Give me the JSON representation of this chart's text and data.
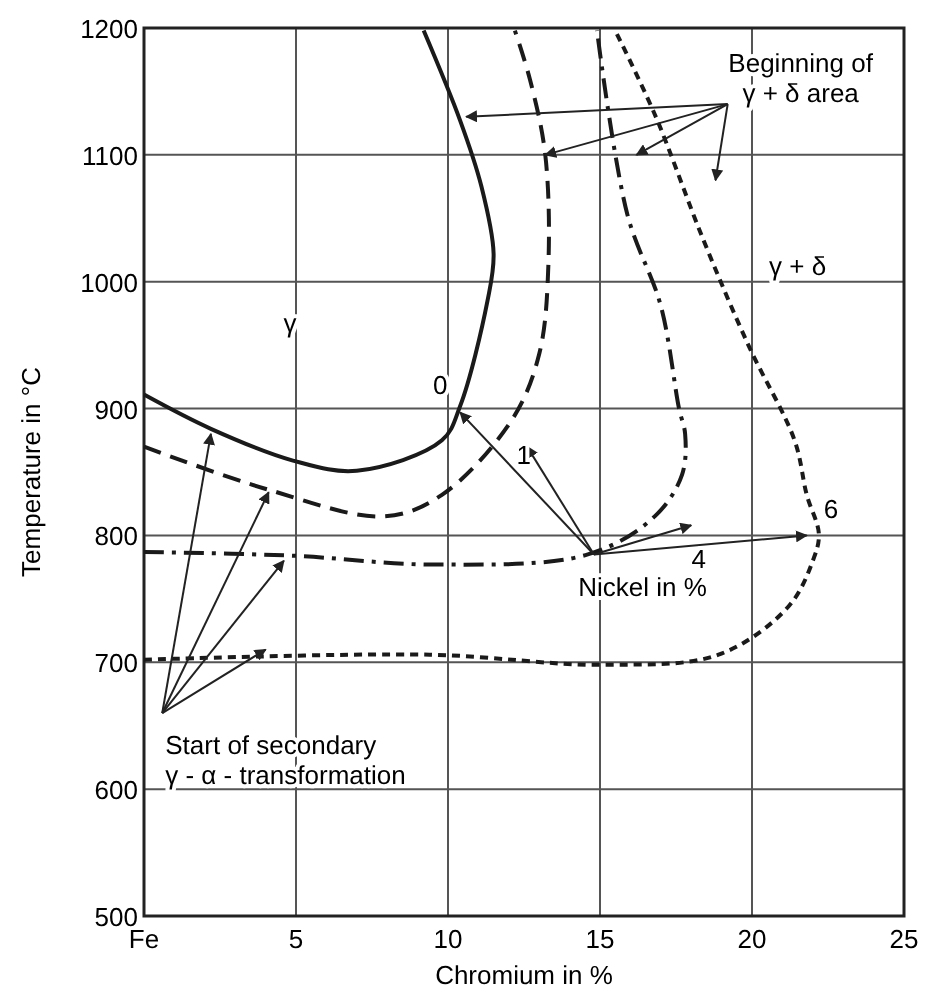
{
  "chart_data": {
    "type": "line",
    "xlabel": "Chromium in %",
    "ylabel": "Temperature in °C",
    "xlim": [
      0,
      25
    ],
    "xticks": [
      {
        "value": 0,
        "label": "Fe"
      },
      5,
      10,
      15,
      20,
      25
    ],
    "ylim": [
      500,
      1200
    ],
    "yticks": [
      500,
      600,
      700,
      800,
      900,
      1000,
      1100,
      1200
    ],
    "grid": true,
    "series": [
      {
        "name": "0",
        "color": "#1a1a1a",
        "line_style": "solid",
        "x": [
          0,
          2.2,
          4.9,
          7.0,
          9.8,
          10.4,
          11.3,
          11.5,
          11.1,
          10.4,
          9.2
        ],
        "values": [
          911,
          884,
          859,
          851,
          875,
          902,
          985,
          1022,
          1075,
          1127,
          1198
        ]
      },
      {
        "name": "1",
        "color": "#1a1a1a",
        "line_style": "dashed",
        "x": [
          0,
          4.1,
          7.9,
          9.8,
          12.1,
          13.0,
          13.3,
          13.2,
          12.7,
          12.2
        ],
        "values": [
          870,
          836,
          815,
          832,
          891,
          943,
          1012,
          1100,
          1159,
          1198
        ]
      },
      {
        "name": "4",
        "color": "#1a1a1a",
        "line_style": "dashdot",
        "x": [
          0,
          4.9,
          9.6,
          14.6,
          16.8,
          17.7,
          17.8,
          17.6,
          17.0,
          15.9,
          14.9
        ],
        "values": [
          787,
          784,
          777,
          785,
          815,
          848,
          880,
          900,
          981,
          1053,
          1198
        ]
      },
      {
        "name": "6",
        "color": "#1a1a1a",
        "line_style": "dotted",
        "x": [
          0,
          9.4,
          15.1,
          18.9,
          21.2,
          22.0,
          22.2,
          21.8,
          21.4,
          19.9,
          18.4,
          16.8,
          15.5
        ],
        "values": [
          702,
          706,
          698,
          706,
          744,
          780,
          801,
          832,
          875,
          949,
          1033,
          1132,
          1198
        ]
      }
    ],
    "annotations": [
      "γ",
      "γ + δ",
      {
        "text": "Beginning of\nγ + δ area",
        "x": 10.6,
        "y": 1130
      },
      {
        "text": "Nickel in %",
        "x": 10.4,
        "y": 897
      },
      {
        "text": "Start of secondary\nγ - α - transformation",
        "x": 2.2,
        "y": 880
      }
    ]
  }
}
